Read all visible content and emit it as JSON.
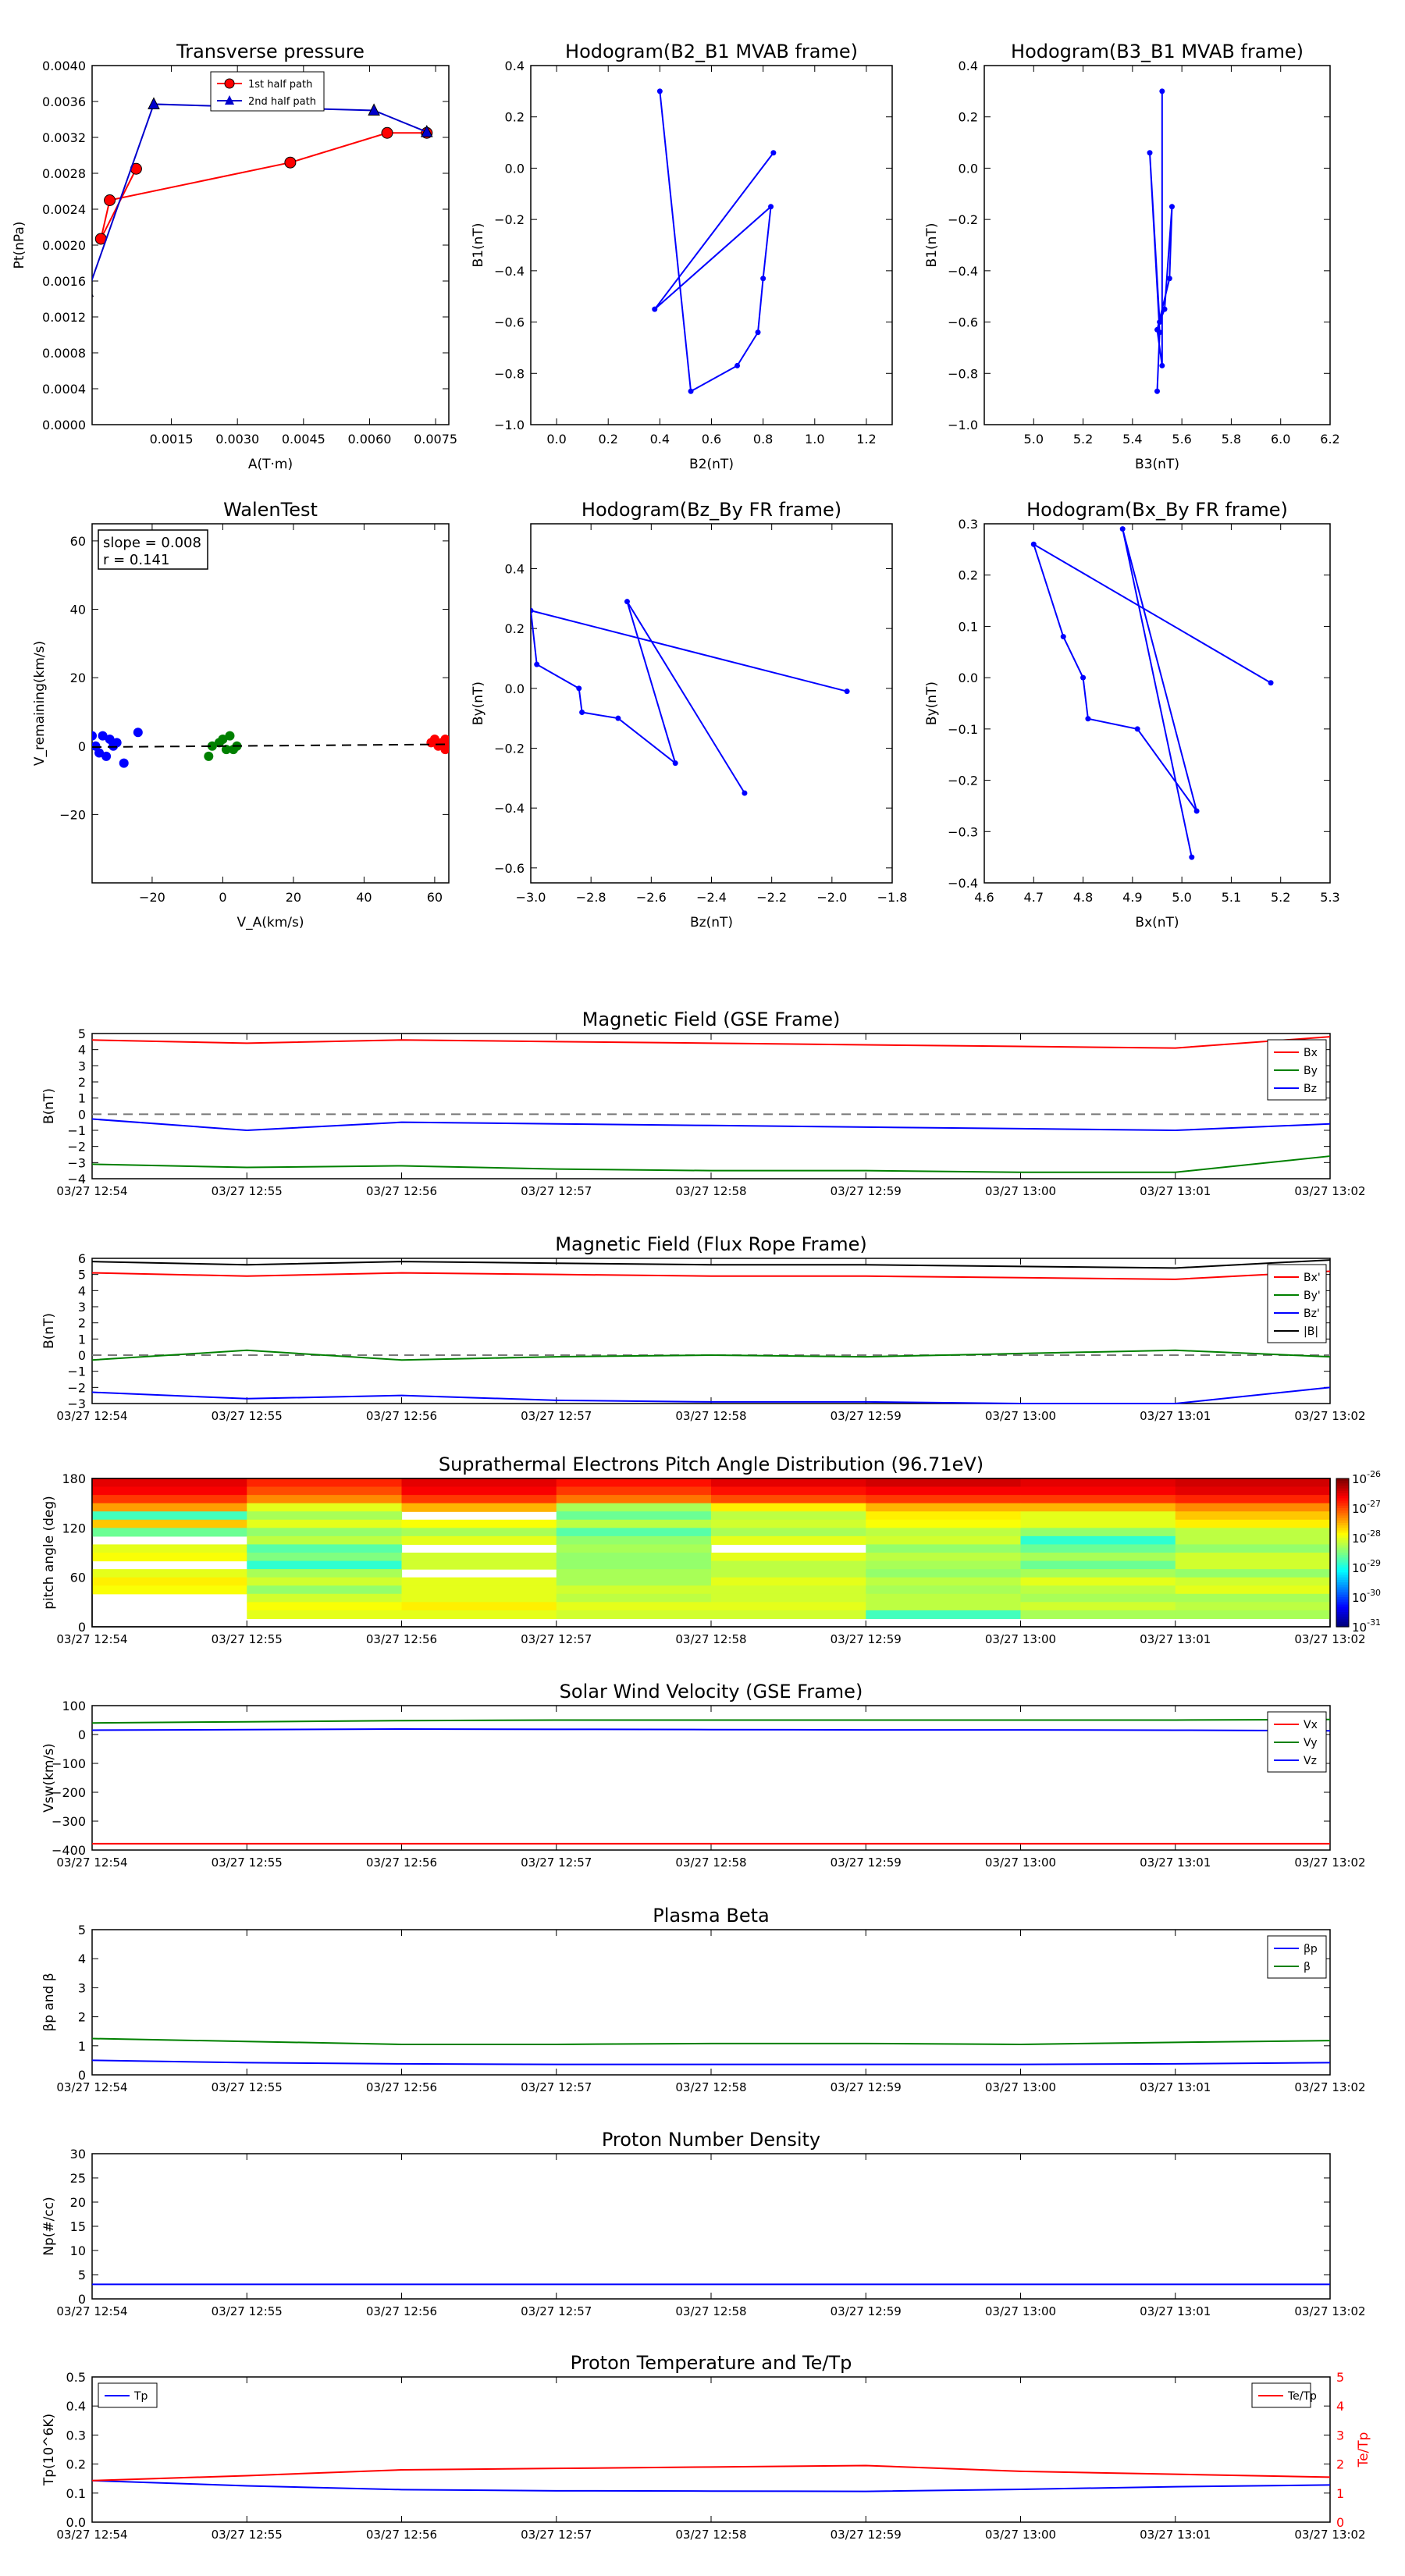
{
  "time_ticks": [
    "03/27 12:54",
    "03/27 12:55",
    "03/27 12:56",
    "03/27 12:57",
    "03/27 12:58",
    "03/27 12:59",
    "03/27 13:00",
    "03/27 13:01",
    "03/27 13:02"
  ],
  "chart_data": [
    {
      "id": "transverse_pressure",
      "type": "line",
      "title": "Transverse pressure",
      "xlabel": "A(T·m)",
      "ylabel": "Pt(nPa)",
      "xlim": [
        -0.0003,
        0.0078
      ],
      "ylim": [
        0,
        0.004
      ],
      "xticks": [
        "0.0015",
        "0.0030",
        "0.0045",
        "0.0060",
        "0.0075"
      ],
      "yticks": [
        "0.0000",
        "0.0004",
        "0.0008",
        "0.0012",
        "0.0016",
        "0.0020",
        "0.0024",
        "0.0028",
        "0.0032",
        "0.0036",
        "0.0040"
      ],
      "legend_position": "top-right",
      "series": [
        {
          "name": "1st half path",
          "color": "#ff0000",
          "marker": "circle",
          "x": [
            0.0073,
            0.0064,
            0.0042,
            0.0001,
            -0.0001,
            0.0007
          ],
          "y": [
            0.00325,
            0.00325,
            0.00292,
            0.0025,
            0.00207,
            0.00285
          ]
        },
        {
          "name": "2nd half path",
          "color": "#0000cc",
          "marker": "triangle",
          "x": [
            -0.0004,
            0.0011,
            0.0061,
            0.0073
          ],
          "y": [
            0.00148,
            0.00357,
            0.0035,
            0.00326
          ]
        }
      ]
    },
    {
      "id": "hodogram_b2_b1",
      "type": "line",
      "title": "Hodogram(B2_B1 MVAB frame)",
      "xlabel": "B2(nT)",
      "ylabel": "B1(nT)",
      "xlim": [
        -0.1,
        1.3
      ],
      "ylim": [
        -1.0,
        0.4
      ],
      "xticks": [
        "0.0",
        "0.2",
        "0.4",
        "0.6",
        "0.8",
        "1.0",
        "1.2"
      ],
      "yticks": [
        "0.4",
        "0.2",
        "0.0",
        "−0.2",
        "−0.4",
        "−0.6",
        "−0.8",
        "−1.0"
      ],
      "series": [
        {
          "color": "#0000ff",
          "x": [
            0.4,
            0.52,
            0.7,
            0.78,
            0.8,
            0.83,
            0.38,
            0.84
          ],
          "y": [
            0.3,
            -0.87,
            -0.77,
            -0.64,
            -0.43,
            -0.15,
            -0.55,
            0.06
          ]
        }
      ]
    },
    {
      "id": "hodogram_b3_b1",
      "type": "line",
      "title": "Hodogram(B3_B1 MVAB frame)",
      "xlabel": "B3(nT)",
      "ylabel": "B1(nT)",
      "xlim": [
        4.8,
        6.2
      ],
      "ylim": [
        -1.0,
        0.4
      ],
      "xticks": [
        "5.0",
        "5.2",
        "5.4",
        "5.6",
        "5.8",
        "6.0",
        "6.2"
      ],
      "yticks": [
        "0.4",
        "0.2",
        "0.0",
        "−0.2",
        "−0.4",
        "−0.6",
        "−0.8",
        "−1.0"
      ],
      "series": [
        {
          "color": "#0000ff",
          "x": [
            5.52,
            5.52,
            5.5,
            5.55,
            5.56,
            5.53,
            5.51,
            5.47,
            5.51,
            5.5
          ],
          "y": [
            0.3,
            -0.77,
            -0.63,
            -0.43,
            -0.15,
            -0.55,
            -0.6,
            0.06,
            -0.64,
            -0.87
          ]
        }
      ]
    },
    {
      "id": "walen_test",
      "type": "scatter",
      "title": "WalenTest",
      "xlabel": "V_A(km/s)",
      "ylabel": "V_remaining(km/s)",
      "xlim": [
        -37,
        64
      ],
      "ylim": [
        -40,
        65
      ],
      "xticks": [
        "−20",
        "0",
        "20",
        "40",
        "60"
      ],
      "yticks": [
        "60",
        "40",
        "20",
        "0",
        "−20"
      ],
      "annotation": [
        "slope = 0.008",
        "r = 0.141"
      ],
      "fit_line": {
        "slope": 0.008,
        "intercept": 0,
        "color": "#000000"
      },
      "series": [
        {
          "color": "#0000ff",
          "x": [
            -37,
            -36,
            -35,
            -34,
            -33,
            -32,
            -31,
            -30,
            -28,
            -24
          ],
          "y": [
            3,
            0,
            -2,
            3,
            -3,
            2,
            0,
            1,
            -5,
            4
          ]
        },
        {
          "color": "#008000",
          "x": [
            -4,
            -3,
            -1,
            0,
            1,
            2,
            3,
            4
          ],
          "y": [
            -3,
            0,
            1,
            2,
            -1,
            3,
            -1,
            0
          ]
        },
        {
          "color": "#ff0000",
          "x": [
            59,
            60,
            61,
            62,
            63,
            64,
            63
          ],
          "y": [
            1,
            2,
            0,
            1,
            2,
            0,
            -1
          ]
        }
      ]
    },
    {
      "id": "hodogram_bz_by",
      "type": "line",
      "title": "Hodogram(Bz_By FR frame)",
      "xlabel": "Bz(nT)",
      "ylabel": "By(nT)",
      "xlim": [
        -3.0,
        -1.8
      ],
      "ylim": [
        -0.65,
        0.55
      ],
      "xticks": [
        "−3.0",
        "−2.8",
        "−2.6",
        "−2.4",
        "−2.2",
        "−2.0",
        "−1.8"
      ],
      "yticks": [
        "0.4",
        "0.2",
        "0.0",
        "−0.2",
        "−0.4",
        "−0.6"
      ],
      "series": [
        {
          "color": "#0000ff",
          "x": [
            -1.95,
            -3.0,
            -2.98,
            -2.84,
            -2.83,
            -2.71,
            -2.52,
            -2.68,
            -2.29
          ],
          "y": [
            -0.01,
            0.26,
            0.08,
            0.0,
            -0.08,
            -0.1,
            -0.25,
            0.29,
            -0.35
          ]
        }
      ]
    },
    {
      "id": "hodogram_bx_by",
      "type": "line",
      "title": "Hodogram(Bx_By FR frame)",
      "xlabel": "Bx(nT)",
      "ylabel": "By(nT)",
      "xlim": [
        4.6,
        5.3
      ],
      "ylim": [
        -0.4,
        0.3
      ],
      "xticks": [
        "4.6",
        "4.7",
        "4.8",
        "4.9",
        "5.0",
        "5.1",
        "5.2",
        "5.3"
      ],
      "yticks": [
        "0.3",
        "0.2",
        "0.1",
        "0.0",
        "−0.1",
        "−0.2",
        "−0.3",
        "−0.4"
      ],
      "series": [
        {
          "color": "#0000ff",
          "x": [
            5.18,
            4.7,
            4.76,
            4.8,
            4.81,
            4.91,
            5.03,
            4.88,
            5.02
          ],
          "y": [
            -0.01,
            0.26,
            0.08,
            0.0,
            -0.08,
            -0.1,
            -0.26,
            0.29,
            -0.35
          ]
        }
      ]
    },
    {
      "id": "mag_gse",
      "type": "line",
      "title": "Magnetic Field (GSE Frame)",
      "ylabel": "B(nT)",
      "ylim": [
        -4,
        5
      ],
      "yticks": [
        "5",
        "4",
        "3",
        "2",
        "1",
        "0",
        "−1",
        "−2",
        "−3",
        "−4"
      ],
      "hline_zero": true,
      "legend_position": "right",
      "series": [
        {
          "name": "Bx",
          "color": "#ff0000",
          "values": [
            4.6,
            4.4,
            4.6,
            4.5,
            4.4,
            4.3,
            4.2,
            4.1,
            4.8
          ]
        },
        {
          "name": "By",
          "color": "#008000",
          "values": [
            -3.1,
            -3.3,
            -3.2,
            -3.4,
            -3.5,
            -3.5,
            -3.6,
            -3.6,
            -2.6
          ]
        },
        {
          "name": "Bz",
          "color": "#0000ff",
          "values": [
            -0.3,
            -1.0,
            -0.5,
            -0.6,
            -0.7,
            -0.8,
            -0.9,
            -1.0,
            -0.6
          ]
        }
      ]
    },
    {
      "id": "mag_fr",
      "type": "line",
      "title": "Magnetic Field (Flux Rope Frame)",
      "ylabel": "B(nT)",
      "ylim": [
        -3,
        6
      ],
      "yticks": [
        "6",
        "5",
        "4",
        "3",
        "2",
        "1",
        "0",
        "−1",
        "−2",
        "−3"
      ],
      "hline_zero": true,
      "legend_position": "right",
      "series": [
        {
          "name": "Bx'",
          "color": "#ff0000",
          "values": [
            5.1,
            4.9,
            5.1,
            5.0,
            4.9,
            4.9,
            4.8,
            4.7,
            5.2
          ]
        },
        {
          "name": "By'",
          "color": "#008000",
          "values": [
            -0.3,
            0.3,
            -0.3,
            -0.1,
            0.0,
            -0.1,
            0.1,
            0.3,
            -0.1
          ]
        },
        {
          "name": "Bz'",
          "color": "#0000ff",
          "values": [
            -2.3,
            -2.7,
            -2.5,
            -2.8,
            -2.9,
            -2.9,
            -3.0,
            -3.0,
            -2.0
          ]
        },
        {
          "name": "|B|",
          "color": "#000000",
          "values": [
            5.8,
            5.6,
            5.8,
            5.7,
            5.6,
            5.6,
            5.5,
            5.4,
            5.9
          ]
        }
      ]
    },
    {
      "id": "pad",
      "type": "heatmap",
      "title": "Suprathermal Electrons Pitch Angle Distribution (96.71eV)",
      "ylabel": "pitch angle (deg)",
      "ylim": [
        0,
        180
      ],
      "yticks": [
        "180",
        "120",
        "60",
        "0"
      ],
      "colorbar_ticks": [
        "-26",
        "-27",
        "-28",
        "-29",
        "-30",
        "-31"
      ],
      "colorbar_range": [
        -31,
        -26
      ],
      "colorbar_label_base": "10",
      "rows_from_top": 18,
      "log_values": [
        [
          -26.5,
          -26.8,
          -26.5,
          -26.7,
          -26.5,
          -26.4,
          -26.5,
          -26.4
        ],
        [
          -26.6,
          -27.0,
          -26.6,
          -26.9,
          -26.7,
          -26.6,
          -26.6,
          -26.5
        ],
        [
          -26.9,
          -27.3,
          -26.9,
          -27.2,
          -27.0,
          -26.9,
          -26.9,
          -26.8
        ],
        [
          -27.4,
          -28.0,
          -27.5,
          -28.3,
          -27.8,
          -27.5,
          -27.5,
          -27.3
        ],
        [
          -28.8,
          -28.3,
          null,
          -28.6,
          -28.2,
          -27.8,
          -28.0,
          -27.6
        ],
        [
          -27.6,
          -28.0,
          -27.9,
          -28.2,
          -28.1,
          -27.9,
          -28.0,
          -27.8
        ],
        [
          -28.6,
          -28.4,
          -28.3,
          -28.7,
          -28.3,
          -28.2,
          -28.4,
          -28.2
        ],
        [
          null,
          -28.2,
          -28.0,
          -28.4,
          -28.0,
          -28.1,
          -28.9,
          -28.2
        ],
        [
          -28.0,
          -28.7,
          null,
          -28.3,
          null,
          -28.4,
          -28.6,
          -28.4
        ],
        [
          -27.9,
          -28.5,
          -28.1,
          -28.4,
          -28.0,
          -28.2,
          -28.3,
          -28.1
        ],
        [
          null,
          -28.9,
          -28.1,
          -28.4,
          -28.2,
          -28.3,
          -28.6,
          -28.1
        ],
        [
          -28.0,
          -28.3,
          null,
          -28.3,
          -28.2,
          -28.4,
          -28.3,
          -28.4
        ],
        [
          -27.8,
          -28.1,
          -28.0,
          -28.3,
          -28.0,
          -28.2,
          -28.0,
          -28.1
        ],
        [
          -27.9,
          -28.4,
          -28.0,
          -28.1,
          -28.1,
          -28.3,
          -28.2,
          -28.0
        ],
        [
          null,
          -28.1,
          -28.0,
          -28.2,
          -28.1,
          -28.2,
          -28.3,
          -28.3
        ],
        [
          null,
          -27.9,
          -27.8,
          -28.0,
          -28.0,
          -28.2,
          -28.1,
          -28.2
        ],
        [
          null,
          -28.0,
          -28.0,
          -28.1,
          -28.1,
          -28.8,
          -28.3,
          -28.3
        ],
        [
          null,
          null,
          null,
          null,
          null,
          null,
          null,
          null
        ]
      ]
    },
    {
      "id": "sw_velocity",
      "type": "line",
      "title": "Solar Wind Velocity (GSE Frame)",
      "ylabel": "Vsw(km/s)",
      "ylim": [
        -400,
        100
      ],
      "yticks": [
        "100",
        "0",
        "−100",
        "−200",
        "−300",
        "−400"
      ],
      "legend_position": "right",
      "series": [
        {
          "name": "Vx",
          "color": "#ff0000",
          "values": [
            -378,
            -378,
            -378,
            -378,
            -378,
            -378,
            -378,
            -378,
            -378
          ]
        },
        {
          "name": "Vy",
          "color": "#008000",
          "values": [
            40,
            44,
            48,
            50,
            50,
            50,
            50,
            50,
            52
          ]
        },
        {
          "name": "Vz",
          "color": "#0000ff",
          "values": [
            15,
            17,
            19,
            18,
            17,
            16,
            16,
            15,
            13
          ]
        }
      ]
    },
    {
      "id": "plasma_beta",
      "type": "line",
      "title": "Plasma Beta",
      "ylabel": "βp and β",
      "ylim": [
        0,
        5
      ],
      "yticks": [
        "5",
        "4",
        "3",
        "2",
        "1",
        "0"
      ],
      "legend_position": "right",
      "series": [
        {
          "name": "βp",
          "color": "#0000ff",
          "values": [
            0.5,
            0.42,
            0.38,
            0.36,
            0.36,
            0.36,
            0.36,
            0.38,
            0.42
          ]
        },
        {
          "name": "β",
          "color": "#008000",
          "values": [
            1.25,
            1.15,
            1.05,
            1.05,
            1.08,
            1.08,
            1.05,
            1.12,
            1.18
          ]
        }
      ]
    },
    {
      "id": "proton_density",
      "type": "line",
      "title": "Proton Number Density",
      "ylabel": "Np(#/cc)",
      "ylim": [
        0,
        30
      ],
      "yticks": [
        "30",
        "25",
        "20",
        "15",
        "10",
        "5",
        "0"
      ],
      "series": [
        {
          "color": "#0000ff",
          "values": [
            3.0,
            3.0,
            3.0,
            3.0,
            3.0,
            3.0,
            3.0,
            3.0,
            3.0
          ]
        }
      ]
    },
    {
      "id": "proton_temp",
      "type": "line",
      "title": "Proton Temperature and Te/Tp",
      "ylabel": "Tp(10^6K)",
      "ylabel_right": "Te/Tp",
      "ylim": [
        0,
        0.5
      ],
      "ylim_right": [
        0,
        5
      ],
      "yticks": [
        "0.5",
        "0.4",
        "0.3",
        "0.2",
        "0.1",
        "0.0"
      ],
      "yticks_right": [
        "5",
        "4",
        "3",
        "2",
        "1",
        "0"
      ],
      "series": [
        {
          "name": "Tp",
          "color": "#0000ff",
          "axis": "left",
          "values": [
            0.143,
            0.125,
            0.112,
            0.108,
            0.107,
            0.106,
            0.113,
            0.122,
            0.128
          ]
        },
        {
          "name": "Te/Tp",
          "color": "#ff0000",
          "axis": "right",
          "values": [
            1.43,
            1.6,
            1.8,
            1.85,
            1.9,
            1.95,
            1.75,
            1.65,
            1.55
          ]
        }
      ]
    }
  ]
}
